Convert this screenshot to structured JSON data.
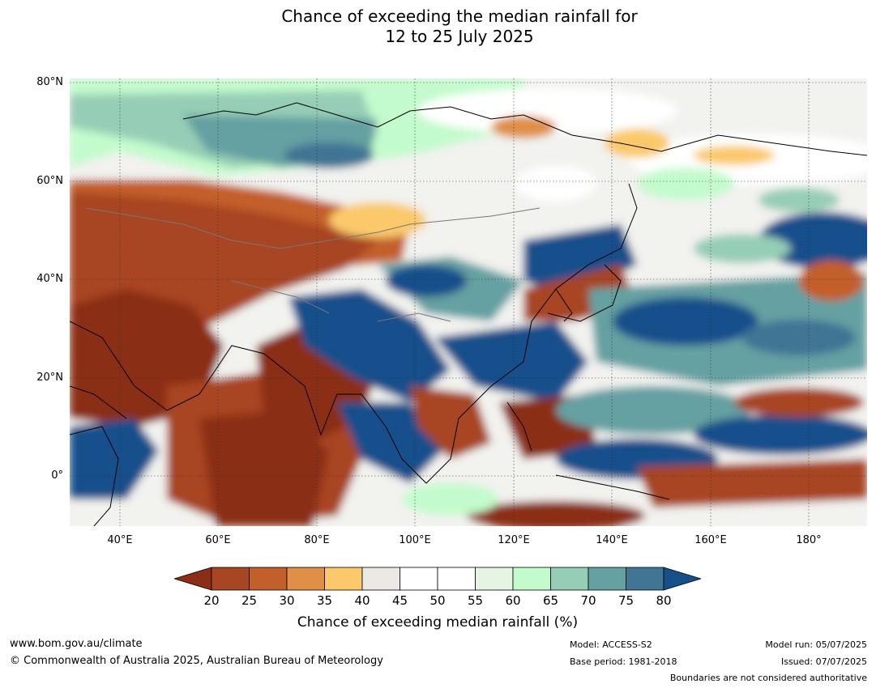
{
  "title_line1": "Chance of exceeding the median rainfall for",
  "title_line2": "12 to 25 July 2025",
  "map": {
    "lat_labels": [
      "80°N",
      "60°N",
      "40°N",
      "20°N",
      "0°"
    ],
    "lon_labels": [
      "40°E",
      "60°E",
      "80°E",
      "100°E",
      "120°E",
      "140°E",
      "160°E",
      "180°"
    ],
    "lat_range": [
      -10,
      80
    ],
    "lon_range": [
      30,
      192
    ],
    "gridlines": true
  },
  "legend": {
    "title": "Chance of exceeding median rainfall (%)",
    "ticks": [
      "20",
      "25",
      "30",
      "35",
      "40",
      "45",
      "50",
      "55",
      "60",
      "65",
      "70",
      "75",
      "80"
    ],
    "colors": [
      "#8b2e17",
      "#a84522",
      "#c35f2c",
      "#df9046",
      "#fbc96b",
      "#ece9e4",
      "#ffffff",
      "#ffffff",
      "#e6f5e3",
      "#c3fbcc",
      "#96cdb6",
      "#65a0a2",
      "#417594",
      "#15508b"
    ]
  },
  "footer": {
    "website": "www.bom.gov.au/climate",
    "copyright": "© Commonwealth of Australia 2025, Australian Bureau of Meteorology",
    "model": "Model: ACCESS-S2",
    "base_period": "Base period: 1981-2018",
    "model_run": "Model run: 05/07/2025",
    "issued": "Issued: 07/07/2025",
    "boundaries": "Boundaries are not considered authoritative"
  }
}
